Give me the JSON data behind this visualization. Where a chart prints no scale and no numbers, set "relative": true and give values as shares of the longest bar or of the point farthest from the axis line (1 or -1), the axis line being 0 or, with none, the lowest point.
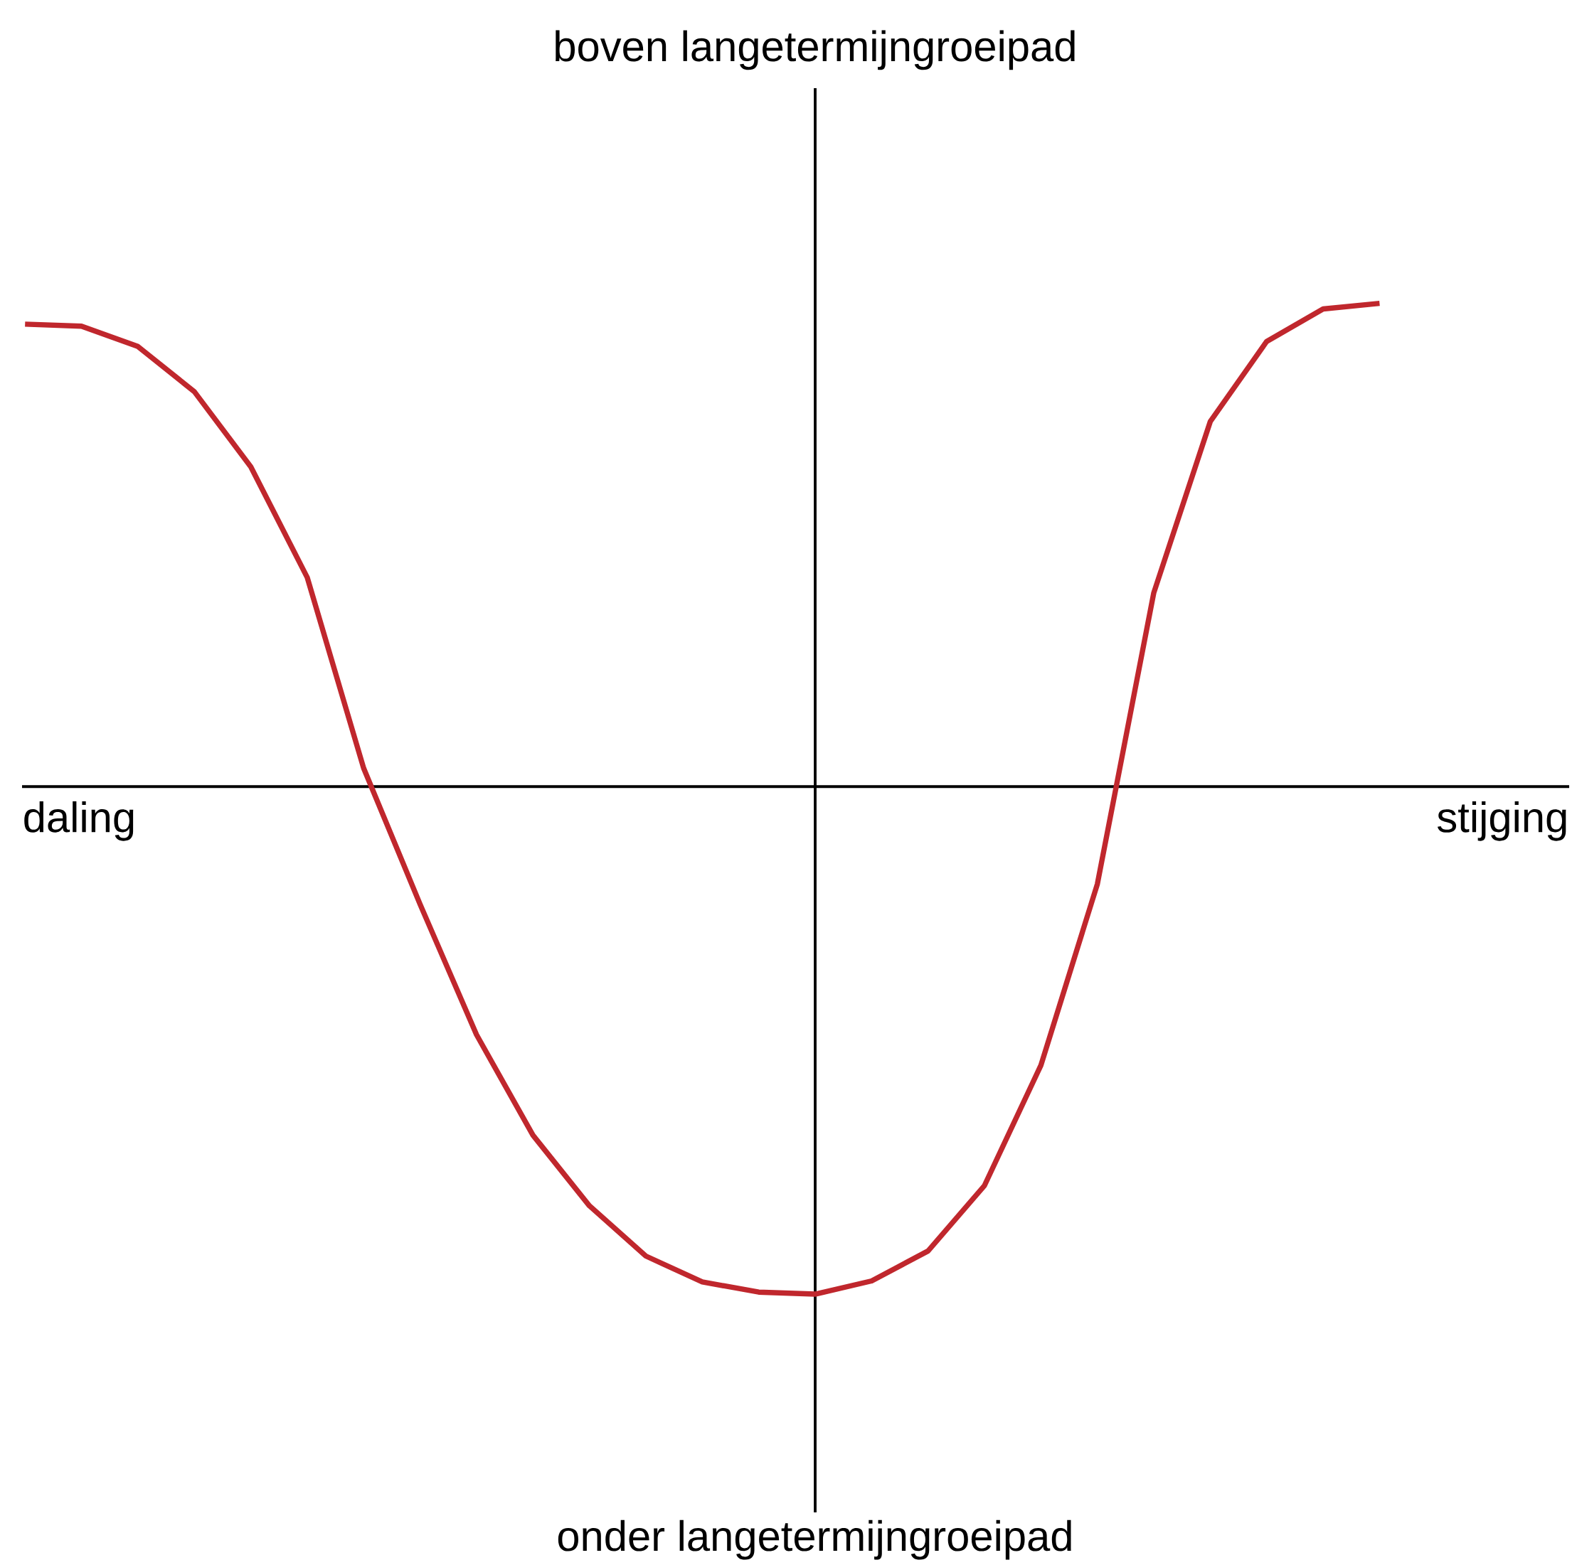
{
  "chart_data": {
    "type": "line",
    "relative": true,
    "color": "#c0272d",
    "categories": [
      null,
      null,
      null,
      null,
      null,
      null,
      null,
      null,
      null,
      null,
      null,
      null,
      null,
      null,
      null,
      null,
      null,
      null,
      null,
      null,
      null,
      null,
      null,
      null,
      null
    ],
    "values": [
      0.911,
      0.907,
      0.867,
      0.778,
      0.63,
      0.412,
      0.036,
      -0.232,
      -0.489,
      -0.687,
      -0.826,
      -0.925,
      -0.976,
      -0.996,
      -1,
      -0.974,
      -0.915,
      -0.786,
      -0.549,
      -0.192,
      0.382,
      0.719,
      0.877,
      0.941,
      0.952
    ],
    "annotations": [
      "boven langetermijngroeipad",
      "onder langetermijngroeipad",
      "daling",
      "stijging"
    ]
  }
}
